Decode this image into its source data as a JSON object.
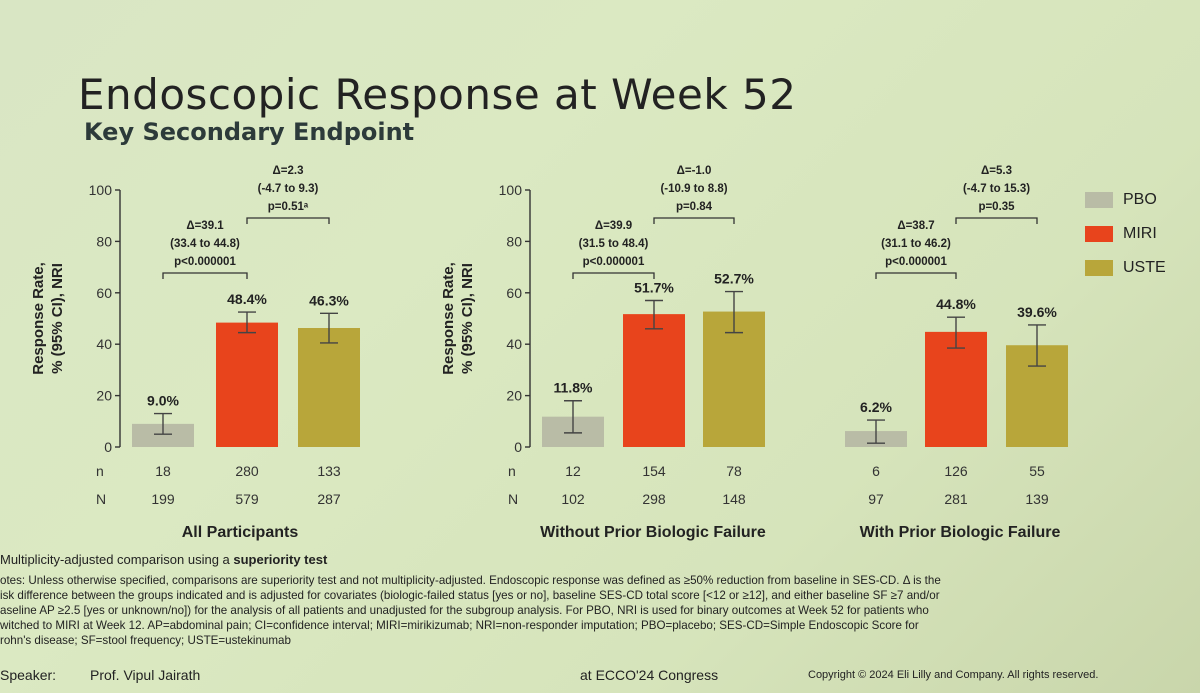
{
  "slide": {
    "title": "Endoscopic Response at Week 52",
    "subtitle": "Key Secondary Endpoint"
  },
  "legend": [
    {
      "label": "PBO",
      "color": "#b9bca6"
    },
    {
      "label": "MIRI",
      "color": "#e8441c"
    },
    {
      "label": "USTE",
      "color": "#b8a63a"
    }
  ],
  "chart_data": [
    {
      "type": "bar",
      "title": "All Participants",
      "ylabel": "Response Rate, % (95% CI), NRI",
      "ylim": [
        0,
        100
      ],
      "yticks": [
        0,
        20,
        40,
        60,
        80,
        100
      ],
      "categories": [
        "PBO",
        "MIRI",
        "USTE"
      ],
      "values": [
        9.0,
        48.4,
        46.3
      ],
      "ci_low": [
        5.0,
        44.5,
        40.5
      ],
      "ci_high": [
        13.0,
        52.5,
        52.0
      ],
      "labels": [
        "9.0%",
        "48.4%",
        "46.3%"
      ],
      "n": [
        "18",
        "280",
        "133"
      ],
      "N": [
        "199",
        "579",
        "287"
      ],
      "comparisons": [
        {
          "from": 0,
          "to": 1,
          "lines": [
            "Δ=39.1",
            "(33.4 to 44.8)",
            "p<0.000001"
          ]
        },
        {
          "from": 1,
          "to": 2,
          "lines": [
            "Δ=2.3",
            "(-4.7 to 9.3)",
            "p=0.51ᵃ"
          ]
        }
      ]
    },
    {
      "type": "bar",
      "title": "Without Prior Biologic Failure",
      "ylabel": "Response Rate, % (95% CI), NRI",
      "ylim": [
        0,
        100
      ],
      "yticks": [
        0,
        20,
        40,
        60,
        80,
        100
      ],
      "categories": [
        "PBO",
        "MIRI",
        "USTE"
      ],
      "values": [
        11.8,
        51.7,
        52.7
      ],
      "ci_low": [
        5.5,
        46.0,
        44.5
      ],
      "ci_high": [
        18.0,
        57.0,
        60.5
      ],
      "labels": [
        "11.8%",
        "51.7%",
        "52.7%"
      ],
      "n": [
        "12",
        "154",
        "78"
      ],
      "N": [
        "102",
        "298",
        "148"
      ],
      "comparisons": [
        {
          "from": 0,
          "to": 1,
          "lines": [
            "Δ=39.9",
            "(31.5 to 48.4)",
            "p<0.000001"
          ]
        },
        {
          "from": 1,
          "to": 2,
          "lines": [
            "Δ=-1.0",
            "(-10.9 to 8.8)",
            "p=0.84"
          ]
        }
      ]
    },
    {
      "type": "bar",
      "title": "With Prior Biologic Failure",
      "ylabel": "",
      "ylim": [
        0,
        100
      ],
      "categories": [
        "PBO",
        "MIRI",
        "USTE"
      ],
      "values": [
        6.2,
        44.8,
        39.6
      ],
      "ci_low": [
        1.5,
        38.5,
        31.5
      ],
      "ci_high": [
        10.5,
        50.5,
        47.5
      ],
      "labels": [
        "6.2%",
        "44.8%",
        "39.6%"
      ],
      "n": [
        "6",
        "126",
        "55"
      ],
      "N": [
        "97",
        "281",
        "139"
      ],
      "comparisons": [
        {
          "from": 0,
          "to": 1,
          "lines": [
            "Δ=38.7",
            "(31.1 to 46.2)",
            "p<0.000001"
          ]
        },
        {
          "from": 1,
          "to": 2,
          "lines": [
            "Δ=5.3",
            "(-4.7 to 15.3)",
            "p=0.35"
          ]
        }
      ]
    }
  ],
  "row_labels": {
    "n": "n",
    "N": "N"
  },
  "footnotes": {
    "first_prefix": "Multiplicity-adjusted comparison using a ",
    "first_bold": "superiority test",
    "lines": [
      "otes: Unless otherwise specified, comparisons are superiority test and not multiplicity-adjusted. Endoscopic response was defined as ≥50% reduction from baseline in SES-CD. Δ is the",
      "isk difference between the groups indicated and is adjusted for covariates (biologic-failed status [yes or no], baseline SES-CD total score [<12 or ≥12], and either baseline SF ≥7 and/or",
      "aseline AP ≥2.5 [yes or unknown/no]) for the analysis of all patients and unadjusted for the subgroup analysis. For PBO, NRI is used for binary outcomes at Week 52 for patients who",
      "witched to MIRI at Week 12. AP=abdominal pain; CI=confidence interval; MIRI=mirikizumab; NRI=non-responder imputation; PBO=placebo; SES-CD=Simple Endoscopic Score for",
      "rohn's disease; SF=stool frequency; USTE=ustekinumab"
    ]
  },
  "footer": {
    "speaker_label": "Speaker:",
    "speaker_name": "Prof. Vipul Jairath",
    "congress": "at ECCO'24 Congress",
    "copyright": "Copyright © 2024 Eli Lilly and Company. All rights reserved."
  }
}
